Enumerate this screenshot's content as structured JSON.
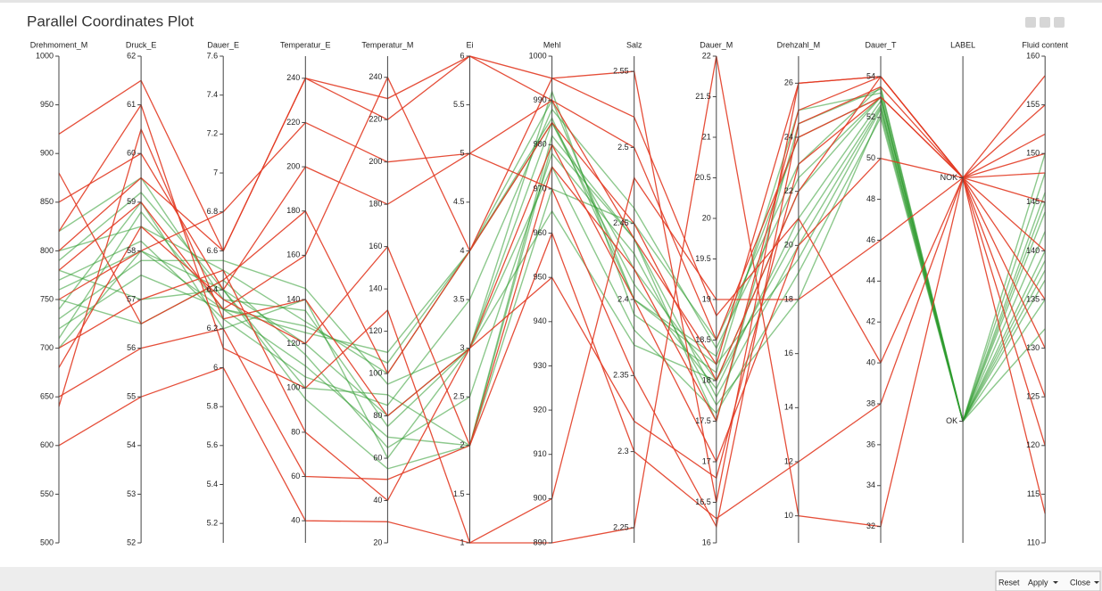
{
  "chart_data": {
    "type": "parallel",
    "title": "Parallel Coordinates Plot",
    "axes": [
      {
        "name": "Drehmoment_M",
        "ylim": [
          500,
          1000
        ],
        "yticks": [
          500,
          550,
          600,
          650,
          700,
          750,
          800,
          850,
          900,
          950,
          1000
        ]
      },
      {
        "name": "Druck_E",
        "ylim": [
          52,
          62
        ],
        "yticks": [
          52,
          53,
          54,
          55,
          56,
          57,
          58,
          59,
          60,
          61,
          62
        ]
      },
      {
        "name": "Dauer_E",
        "ylim": [
          5.1,
          7.6
        ],
        "yticks": [
          5.2,
          5.4,
          5.6,
          5.8,
          6,
          6.2,
          6.4,
          6.6,
          6.8,
          7,
          7.2,
          7.4,
          7.6
        ]
      },
      {
        "name": "Temperatur_E",
        "ylim": [
          30,
          250
        ],
        "yticks": [
          40,
          60,
          80,
          100,
          120,
          140,
          160,
          180,
          200,
          220,
          240
        ]
      },
      {
        "name": "Temperatur_M",
        "ylim": [
          20,
          250
        ],
        "yticks": [
          20,
          40,
          60,
          80,
          100,
          120,
          140,
          160,
          180,
          200,
          220,
          240
        ]
      },
      {
        "name": "Ei",
        "ylim": [
          1,
          6
        ],
        "yticks": [
          1,
          1.5,
          2,
          2.5,
          3,
          3.5,
          4,
          4.5,
          5,
          5.5,
          6
        ]
      },
      {
        "name": "Mehl",
        "ylim": [
          890,
          1000
        ],
        "yticks": [
          890,
          900,
          910,
          920,
          930,
          940,
          950,
          960,
          970,
          980,
          990,
          1000
        ]
      },
      {
        "name": "Salz",
        "ylim": [
          2.24,
          2.56
        ],
        "yticks": [
          2.25,
          2.3,
          2.35,
          2.4,
          2.45,
          2.5,
          2.55
        ]
      },
      {
        "name": "Dauer_M",
        "ylim": [
          16,
          22
        ],
        "yticks": [
          16,
          16.5,
          17,
          17.5,
          18,
          18.5,
          19,
          19.5,
          20,
          20.5,
          21,
          21.5,
          22
        ]
      },
      {
        "name": "Drehzahl_M",
        "ylim": [
          9,
          27
        ],
        "yticks": [
          10,
          12,
          14,
          16,
          18,
          20,
          22,
          24,
          26
        ]
      },
      {
        "name": "Dauer_T",
        "ylim": [
          31.2,
          55
        ],
        "yticks": [
          32,
          34,
          36,
          38,
          40,
          42,
          44,
          46,
          48,
          50,
          52,
          54
        ]
      },
      {
        "name": "LABEL",
        "categories": [
          "OK",
          "NOK"
        ]
      },
      {
        "name": "Fluid content",
        "ylim": [
          110,
          160
        ],
        "yticks": [
          110,
          115,
          120,
          125,
          130,
          135,
          140,
          145,
          150,
          155,
          160
        ]
      }
    ],
    "groups": [
      {
        "color": "#2e9a2e",
        "records": [
          [
            760,
            58,
            6.4,
            120,
            80,
            3,
            985,
            2.42,
            18,
            22,
            53,
            "OK",
            140
          ],
          [
            720,
            57.5,
            6.3,
            110,
            70,
            2,
            980,
            2.44,
            17.8,
            20,
            52.5,
            "OK",
            138
          ],
          [
            800,
            58.5,
            6.5,
            130,
            100,
            4,
            990,
            2.4,
            18.3,
            24,
            53,
            "OK",
            145
          ],
          [
            740,
            59,
            6.2,
            140,
            60,
            3,
            975,
            2.38,
            17.6,
            19,
            52,
            "OK",
            135
          ],
          [
            780,
            57,
            6.4,
            100,
            90,
            2,
            970,
            2.45,
            18.5,
            23,
            53.5,
            "OK",
            142
          ],
          [
            700,
            58,
            6.3,
            125,
            110,
            4,
            985,
            2.41,
            17.9,
            21,
            52.8,
            "OK",
            148
          ],
          [
            820,
            59.5,
            6.35,
            135,
            75,
            3,
            992,
            2.39,
            18.1,
            25,
            53.2,
            "OK",
            150
          ],
          [
            750,
            56.5,
            6.45,
            115,
            65,
            2.5,
            978,
            2.43,
            17.7,
            18,
            52.2,
            "OK",
            132
          ],
          [
            770,
            58.2,
            6.25,
            105,
            85,
            3.5,
            988,
            2.46,
            18.4,
            22.5,
            53,
            "OK",
            144
          ],
          [
            730,
            57.8,
            6.55,
            145,
            95,
            3,
            965,
            2.37,
            18,
            20.5,
            52.6,
            "OK",
            137
          ],
          [
            790,
            59.2,
            6.4,
            95,
            55,
            2,
            982,
            2.44,
            17.5,
            24.5,
            53.4,
            "OK",
            146
          ],
          [
            710,
            58.8,
            6.3,
            128,
            105,
            4,
            986,
            2.4,
            18.2,
            19.5,
            52.4,
            "OK",
            139
          ]
        ]
      },
      {
        "color": "#e23b24",
        "records": [
          [
            920,
            61.5,
            6.6,
            240,
            230,
            6,
            995,
            2.55,
            16.5,
            26,
            54,
            "NOK",
            155
          ],
          [
            600,
            55,
            6,
            40,
            30,
            1,
            890,
            2.25,
            22,
            10,
            32,
            "NOK",
            113
          ],
          [
            850,
            60,
            6.4,
            200,
            180,
            5,
            990,
            2.5,
            18.5,
            24,
            53,
            "NOK",
            150
          ],
          [
            650,
            56,
            6.2,
            60,
            50,
            2,
            960,
            2.3,
            16.3,
            12,
            38,
            "NOK",
            120
          ],
          [
            780,
            59,
            6.3,
            160,
            240,
            4,
            985,
            2.45,
            18,
            22,
            54,
            "NOK",
            145
          ],
          [
            700,
            57,
            6.5,
            80,
            40,
            3,
            980,
            2.4,
            17,
            20,
            50,
            "NOK",
            140
          ],
          [
            750,
            58,
            6.8,
            220,
            200,
            5,
            970,
            2.35,
            16.2,
            24.5,
            53.5,
            "NOK",
            158
          ],
          [
            820,
            61,
            6.1,
            100,
            130,
            1,
            900,
            2.48,
            19,
            18,
            46,
            "NOK",
            125
          ],
          [
            680,
            58.5,
            6.35,
            120,
            160,
            2,
            975,
            2.42,
            17.5,
            25,
            54,
            "NOK",
            135
          ],
          [
            880,
            56.5,
            6.45,
            180,
            100,
            4,
            995,
            2.52,
            18.8,
            21,
            40,
            "NOK",
            152
          ],
          [
            640,
            60.5,
            6.25,
            140,
            80,
            3,
            950,
            2.32,
            16.8,
            23,
            53,
            "NOK",
            130
          ],
          [
            800,
            59.5,
            6.6,
            240,
            220,
            6,
            990,
            2.44,
            18.2,
            26,
            54,
            "NOK",
            148
          ]
        ]
      }
    ]
  },
  "toolbar": {
    "buttons": [
      "Reset",
      "Apply",
      "Close"
    ]
  }
}
